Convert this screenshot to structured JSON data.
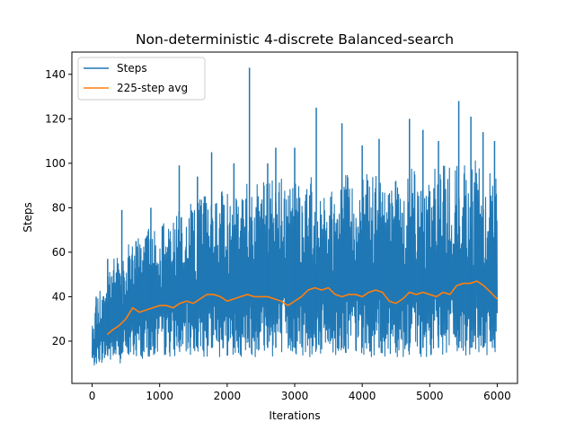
{
  "chart_data": {
    "type": "line",
    "title": "Non-deterministic 4-discrete Balanced-search",
    "xlabel": "Iterations",
    "ylabel": "Steps",
    "xlim": [
      -300,
      6300
    ],
    "ylim": [
      1,
      150
    ],
    "xticks": [
      0,
      1000,
      2000,
      3000,
      4000,
      5000,
      6000
    ],
    "xtick_labels": [
      "0",
      "1000",
      "2000",
      "3000",
      "4000",
      "5000",
      "6000"
    ],
    "yticks": [
      20,
      40,
      60,
      80,
      100,
      120,
      140
    ],
    "ytick_labels": [
      "20",
      "40",
      "60",
      "80",
      "100",
      "120",
      "140"
    ],
    "grid": false,
    "legend_position": "top-left",
    "series": [
      {
        "name": "Steps",
        "color": "#1f77b4",
        "envelope": {
          "x": [
            0,
            100,
            200,
            300,
            400,
            500,
            600,
            700,
            800,
            900,
            1000,
            1200,
            1400,
            1600,
            1800,
            2000,
            2200,
            2400,
            2600,
            2800,
            3000,
            3200,
            3400,
            3600,
            3800,
            4000,
            4200,
            4400,
            4600,
            4800,
            5000,
            5200,
            5400,
            5600,
            5800,
            6000
          ],
          "min": [
            8,
            10,
            10,
            10,
            10,
            11,
            12,
            12,
            12,
            12,
            13,
            13,
            13,
            13,
            13,
            13,
            13,
            13,
            13,
            13,
            13,
            13,
            13,
            13,
            13,
            13,
            13,
            13,
            13,
            13,
            13,
            13,
            13,
            13,
            13,
            13
          ],
          "max": [
            30,
            42,
            48,
            56,
            60,
            64,
            66,
            68,
            70,
            71,
            72,
            76,
            82,
            86,
            87,
            88,
            90,
            92,
            93,
            93,
            93,
            94,
            94,
            95,
            95,
            95,
            96,
            96,
            97,
            98,
            98,
            99,
            100,
            101,
            102,
            95
          ]
        },
        "spikes": [
          {
            "x": 60,
            "y": 40
          },
          {
            "x": 230,
            "y": 57
          },
          {
            "x": 440,
            "y": 79
          },
          {
            "x": 650,
            "y": 65
          },
          {
            "x": 870,
            "y": 80
          },
          {
            "x": 1290,
            "y": 99
          },
          {
            "x": 1560,
            "y": 94
          },
          {
            "x": 1770,
            "y": 105
          },
          {
            "x": 2100,
            "y": 100
          },
          {
            "x": 2330,
            "y": 143
          },
          {
            "x": 2600,
            "y": 100
          },
          {
            "x": 2720,
            "y": 107
          },
          {
            "x": 3000,
            "y": 107
          },
          {
            "x": 3320,
            "y": 125
          },
          {
            "x": 3700,
            "y": 118
          },
          {
            "x": 4000,
            "y": 108
          },
          {
            "x": 4250,
            "y": 111
          },
          {
            "x": 4700,
            "y": 120
          },
          {
            "x": 4900,
            "y": 115
          },
          {
            "x": 5130,
            "y": 110
          },
          {
            "x": 5430,
            "y": 128
          },
          {
            "x": 5610,
            "y": 121
          },
          {
            "x": 5790,
            "y": 114
          },
          {
            "x": 5960,
            "y": 110
          }
        ]
      },
      {
        "name": "225-step avg",
        "color": "#ff7f0e",
        "x": [
          225,
          300,
          400,
          500,
          600,
          700,
          800,
          900,
          1000,
          1100,
          1200,
          1300,
          1400,
          1500,
          1600,
          1700,
          1800,
          1900,
          2000,
          2100,
          2200,
          2300,
          2400,
          2500,
          2600,
          2700,
          2800,
          2900,
          3000,
          3100,
          3200,
          3300,
          3400,
          3500,
          3600,
          3700,
          3800,
          3900,
          4000,
          4100,
          4200,
          4300,
          4400,
          4500,
          4600,
          4700,
          4800,
          4900,
          5000,
          5100,
          5200,
          5300,
          5400,
          5500,
          5600,
          5700,
          5800,
          5900,
          6000
        ],
        "y": [
          23,
          25,
          27,
          30,
          35,
          33,
          34,
          35,
          36,
          36,
          35,
          37,
          38,
          37,
          39,
          41,
          41,
          40,
          38,
          39,
          40,
          41,
          40,
          40,
          40,
          39,
          38,
          36,
          38,
          40,
          43,
          44,
          43,
          44,
          41,
          40,
          41,
          41,
          40,
          42,
          43,
          42,
          38,
          37,
          39,
          42,
          41,
          42,
          41,
          40,
          42,
          41,
          45,
          46,
          46,
          47,
          45,
          42,
          39
        ]
      }
    ]
  }
}
